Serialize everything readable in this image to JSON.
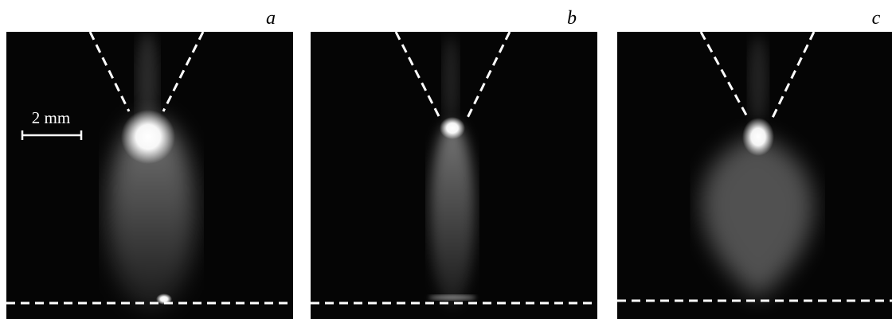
{
  "panels": [
    {
      "label": "a"
    },
    {
      "label": "b"
    },
    {
      "label": "c"
    }
  ],
  "scale_bar": {
    "label": "2 mm"
  }
}
